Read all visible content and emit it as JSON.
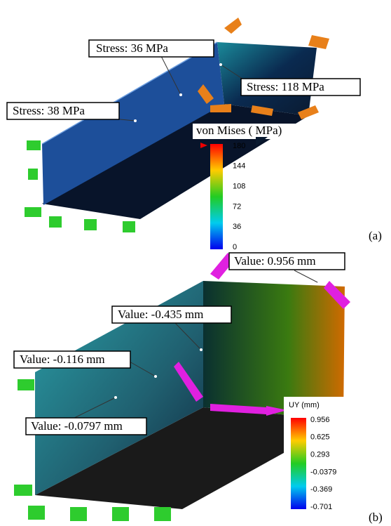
{
  "panel_a": {
    "annotations": [
      "Stress: 36 MPa",
      "Stress: 118 MPa",
      "Stress: 38 MPa"
    ],
    "legend": {
      "title": "von Mises ( MPa)",
      "ticks": [
        "180",
        "144",
        "108",
        "72",
        "36",
        "0"
      ]
    },
    "label": "(a)"
  },
  "panel_b": {
    "annotations": [
      "Value: 0.956 mm",
      "Value: -0.435 mm",
      "Value: -0.116 mm",
      "Value: -0.0797 mm"
    ],
    "legend": {
      "title": "UY (mm)",
      "ticks": [
        "0.956",
        "0.625",
        "0.293",
        "-0.0379",
        "-0.369",
        "-0.701"
      ]
    },
    "label": "(b)"
  }
}
